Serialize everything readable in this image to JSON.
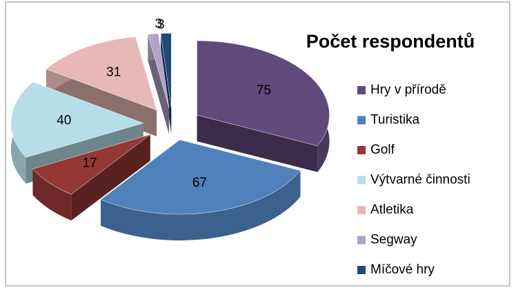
{
  "chart_data": {
    "type": "pie3d",
    "title": "Počet respondentů",
    "categories": [
      "Hry v přírodě",
      "Turistika",
      "Golf",
      "Výtvarné činnosti",
      "Atletika",
      "Segway",
      "Míčové hry"
    ],
    "values": [
      75,
      67,
      17,
      40,
      31,
      3,
      3
    ],
    "colors": [
      "#604a7b",
      "#4f81bd",
      "#953735",
      "#b7dde8",
      "#e6b9b8",
      "#b3a2c7",
      "#1f497d"
    ],
    "legend": "right"
  }
}
